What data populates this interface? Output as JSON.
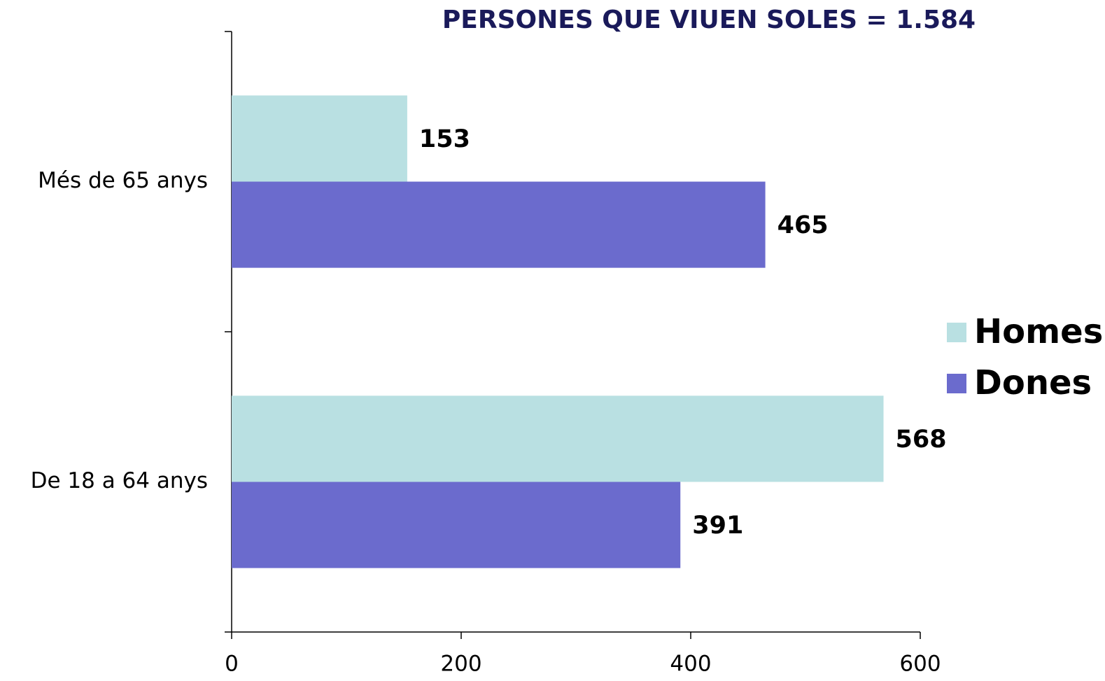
{
  "chart_data": {
    "type": "hbar",
    "title": "PERSONES QUE VIUEN SOLES = 1.584",
    "categories": [
      "Més de 65 anys",
      "De 18 a 64 anys"
    ],
    "series": [
      {
        "name": "Homes",
        "color": "#b9e0e2",
        "values": [
          153,
          568
        ]
      },
      {
        "name": "Dones",
        "color": "#6b6bcd",
        "values": [
          465,
          391
        ]
      }
    ],
    "xlim": [
      0,
      600
    ],
    "xticks": [
      0,
      200,
      400,
      600
    ],
    "legend": "right"
  }
}
